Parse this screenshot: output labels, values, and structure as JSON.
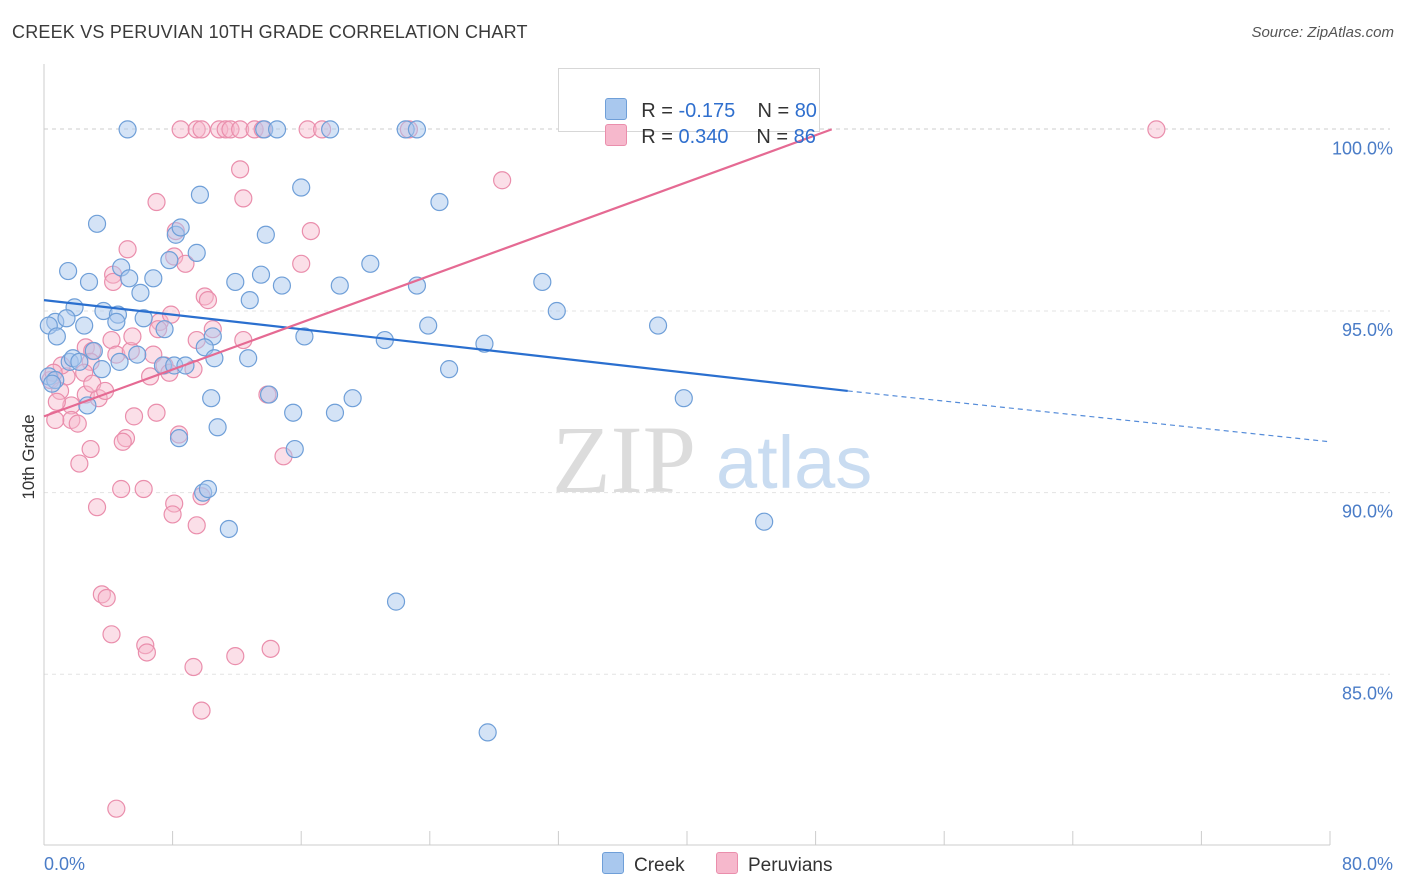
{
  "header": {
    "title": "CREEK VS PERUVIAN 10TH GRADE CORRELATION CHART",
    "source": "Source: ZipAtlas.com"
  },
  "watermark": {
    "part1": "ZIP",
    "part2": "atlas"
  },
  "legend": {
    "rows": [
      {
        "r_label": "R = ",
        "r_value": "-0.175",
        "n_label": "N = ",
        "n_value": "80",
        "color": "#a9c8ee"
      },
      {
        "r_label": "R = ",
        "r_value": "0.340",
        "n_label": "N = ",
        "n_value": "86",
        "color": "#f6b8cc"
      }
    ]
  },
  "bottom_legend": {
    "creek": "Creek",
    "peruvians": "Peruvians"
  },
  "colors": {
    "creek_fill": "#a9c8ee",
    "creek_stroke": "#6f9fd8",
    "creek_line": "#2a6fcf",
    "peru_fill": "#f6b8cc",
    "peru_stroke": "#ea8eac",
    "peru_line": "#e56a93",
    "tick_text": "#4a7cc7",
    "grid": "#e3e3e3"
  },
  "chart_data": {
    "type": "scatter",
    "title": "CREEK VS PERUVIAN 10TH GRADE CORRELATION CHART",
    "xlabel": "",
    "ylabel": "10th Grade",
    "xlim": [
      0,
      80
    ],
    "ylim": [
      80.3,
      101.8
    ],
    "x_tick_labels": [
      "0.0%",
      "80.0%"
    ],
    "y_ticks": [
      85,
      90,
      95,
      100
    ],
    "y_tick_labels": [
      "85.0%",
      "90.0%",
      "95.0%",
      "100.0%"
    ],
    "grid": true,
    "legend_position": "top-center",
    "series": [
      {
        "name": "Creek",
        "color": "#a9c8ee",
        "r": -0.175,
        "n": 80,
        "trend": {
          "x": [
            0,
            50,
            80
          ],
          "y": [
            95.3,
            92.8,
            91.4
          ],
          "solid_until_x": 50
        },
        "points": [
          [
            5.2,
            100.0
          ],
          [
            13.7,
            100.0
          ],
          [
            14.5,
            100.0
          ],
          [
            17.8,
            100.0
          ],
          [
            22.5,
            100.0
          ],
          [
            23.2,
            100.0
          ],
          [
            16.0,
            98.4
          ],
          [
            9.7,
            98.2
          ],
          [
            24.6,
            98.0
          ],
          [
            3.3,
            97.4
          ],
          [
            13.8,
            97.1
          ],
          [
            8.2,
            97.1
          ],
          [
            8.5,
            97.3
          ],
          [
            9.5,
            96.6
          ],
          [
            7.8,
            96.4
          ],
          [
            20.3,
            96.3
          ],
          [
            1.5,
            96.1
          ],
          [
            4.8,
            96.2
          ],
          [
            5.3,
            95.9
          ],
          [
            6.8,
            95.9
          ],
          [
            11.9,
            95.8
          ],
          [
            14.8,
            95.7
          ],
          [
            18.4,
            95.7
          ],
          [
            23.2,
            95.7
          ],
          [
            31.0,
            95.8
          ],
          [
            2.8,
            95.8
          ],
          [
            6.0,
            95.5
          ],
          [
            12.8,
            95.3
          ],
          [
            1.9,
            95.1
          ],
          [
            31.9,
            95.0
          ],
          [
            3.7,
            95.0
          ],
          [
            4.6,
            94.9
          ],
          [
            0.7,
            94.7
          ],
          [
            1.4,
            94.8
          ],
          [
            6.2,
            94.8
          ],
          [
            4.5,
            94.7
          ],
          [
            2.5,
            94.6
          ],
          [
            23.9,
            94.6
          ],
          [
            38.2,
            94.6
          ],
          [
            7.5,
            94.5
          ],
          [
            0.3,
            94.6
          ],
          [
            10.5,
            94.3
          ],
          [
            16.2,
            94.3
          ],
          [
            21.2,
            94.2
          ],
          [
            27.4,
            94.1
          ],
          [
            0.8,
            94.3
          ],
          [
            10.0,
            94.0
          ],
          [
            3.1,
            93.9
          ],
          [
            5.8,
            93.8
          ],
          [
            10.6,
            93.7
          ],
          [
            12.7,
            93.7
          ],
          [
            1.6,
            93.6
          ],
          [
            1.8,
            93.7
          ],
          [
            4.7,
            93.6
          ],
          [
            7.4,
            93.5
          ],
          [
            8.1,
            93.5
          ],
          [
            8.8,
            93.5
          ],
          [
            2.2,
            93.6
          ],
          [
            3.6,
            93.4
          ],
          [
            25.2,
            93.4
          ],
          [
            0.3,
            93.2
          ],
          [
            0.7,
            93.1
          ],
          [
            0.5,
            93.0
          ],
          [
            14.0,
            92.7
          ],
          [
            19.2,
            92.6
          ],
          [
            10.4,
            92.6
          ],
          [
            39.8,
            92.6
          ],
          [
            2.7,
            92.4
          ],
          [
            15.5,
            92.2
          ],
          [
            18.1,
            92.2
          ],
          [
            10.8,
            91.8
          ],
          [
            8.4,
            91.5
          ],
          [
            15.6,
            91.2
          ],
          [
            9.9,
            90.0
          ],
          [
            11.5,
            89.0
          ],
          [
            44.8,
            89.2
          ],
          [
            21.9,
            87.0
          ],
          [
            27.6,
            83.4
          ],
          [
            10.2,
            90.1
          ],
          [
            13.5,
            96.0
          ]
        ]
      },
      {
        "name": "Peruvians",
        "color": "#f6b8cc",
        "r": 0.34,
        "n": 86,
        "trend": {
          "x": [
            0,
            49
          ],
          "y": [
            92.1,
            100.0
          ],
          "solid_until_x": 49
        },
        "points": [
          [
            8.5,
            100.0
          ],
          [
            9.5,
            100.0
          ],
          [
            9.8,
            100.0
          ],
          [
            10.9,
            100.0
          ],
          [
            11.3,
            100.0
          ],
          [
            11.6,
            100.0
          ],
          [
            12.2,
            100.0
          ],
          [
            13.1,
            100.0
          ],
          [
            13.6,
            100.0
          ],
          [
            16.4,
            100.0
          ],
          [
            17.3,
            100.0
          ],
          [
            22.7,
            100.0
          ],
          [
            69.2,
            100.0
          ],
          [
            12.2,
            98.9
          ],
          [
            28.5,
            98.6
          ],
          [
            12.4,
            98.1
          ],
          [
            7.0,
            98.0
          ],
          [
            16.6,
            97.2
          ],
          [
            8.2,
            97.2
          ],
          [
            5.2,
            96.7
          ],
          [
            8.1,
            96.5
          ],
          [
            16.0,
            96.3
          ],
          [
            8.8,
            96.3
          ],
          [
            4.3,
            96.0
          ],
          [
            4.3,
            95.8
          ],
          [
            10.0,
            95.4
          ],
          [
            10.2,
            95.3
          ],
          [
            7.2,
            94.7
          ],
          [
            7.9,
            94.9
          ],
          [
            7.1,
            94.5
          ],
          [
            12.4,
            94.2
          ],
          [
            9.5,
            94.2
          ],
          [
            4.2,
            94.2
          ],
          [
            2.6,
            94.0
          ],
          [
            3.0,
            93.9
          ],
          [
            4.5,
            93.8
          ],
          [
            5.4,
            93.9
          ],
          [
            6.8,
            93.8
          ],
          [
            2.9,
            93.6
          ],
          [
            7.5,
            93.5
          ],
          [
            9.3,
            93.4
          ],
          [
            2.5,
            93.3
          ],
          [
            6.6,
            93.2
          ],
          [
            1.4,
            93.2
          ],
          [
            0.4,
            93.1
          ],
          [
            1.0,
            92.8
          ],
          [
            2.6,
            92.7
          ],
          [
            13.9,
            92.7
          ],
          [
            3.4,
            92.6
          ],
          [
            1.7,
            92.4
          ],
          [
            7.0,
            92.2
          ],
          [
            1.7,
            92.0
          ],
          [
            5.6,
            92.1
          ],
          [
            0.7,
            92.0
          ],
          [
            2.1,
            91.9
          ],
          [
            8.4,
            91.6
          ],
          [
            5.1,
            91.5
          ],
          [
            4.9,
            91.4
          ],
          [
            2.9,
            91.2
          ],
          [
            14.9,
            91.0
          ],
          [
            2.2,
            90.8
          ],
          [
            4.8,
            90.1
          ],
          [
            9.8,
            89.9
          ],
          [
            8.1,
            89.7
          ],
          [
            3.3,
            89.6
          ],
          [
            8.0,
            89.4
          ],
          [
            9.5,
            89.1
          ],
          [
            3.6,
            87.2
          ],
          [
            3.9,
            87.1
          ],
          [
            4.2,
            86.1
          ],
          [
            6.3,
            85.8
          ],
          [
            6.4,
            85.6
          ],
          [
            14.1,
            85.7
          ],
          [
            11.9,
            85.5
          ],
          [
            9.3,
            85.2
          ],
          [
            9.8,
            84.0
          ],
          [
            4.5,
            81.3
          ],
          [
            0.8,
            92.5
          ],
          [
            3.0,
            93.0
          ],
          [
            5.5,
            94.3
          ],
          [
            7.8,
            93.3
          ],
          [
            10.5,
            94.5
          ],
          [
            1.1,
            93.5
          ],
          [
            6.2,
            90.1
          ],
          [
            3.8,
            92.8
          ],
          [
            0.6,
            93.3
          ]
        ]
      }
    ]
  }
}
